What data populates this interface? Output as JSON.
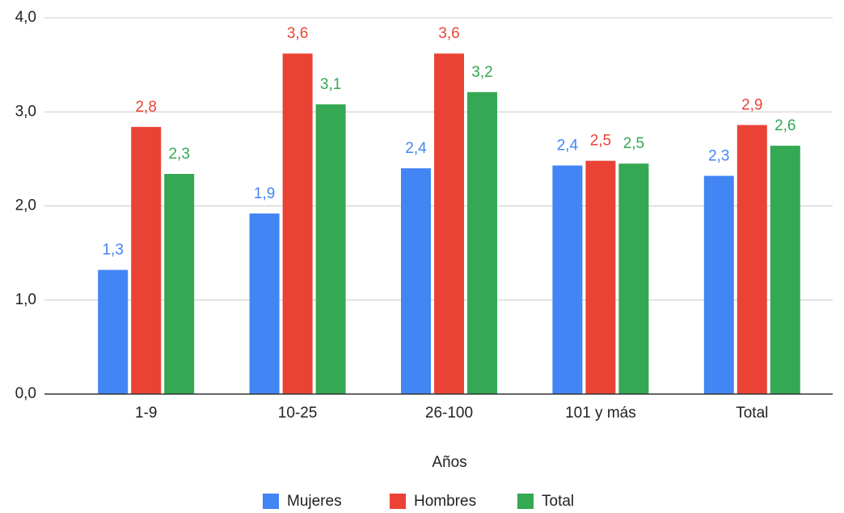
{
  "chart_data": {
    "type": "bar",
    "x_label": "Años",
    "categories": [
      "1-9",
      "10-25",
      "26-100",
      "101 y más",
      "Total"
    ],
    "series": [
      {
        "name": "Mujeres",
        "color": "#4285f4",
        "values": [
          1.32,
          1.92,
          2.4,
          2.43,
          2.32
        ],
        "value_labels": [
          "1,3",
          "1,9",
          "2,4",
          "2,4",
          "2,3"
        ]
      },
      {
        "name": "Hombres",
        "color": "#ea4335",
        "values": [
          2.84,
          3.62,
          3.62,
          2.48,
          2.86
        ],
        "value_labels": [
          "2,8",
          "3,6",
          "3,6",
          "2,5",
          "2,9"
        ]
      },
      {
        "name": "Total",
        "color": "#34a853",
        "values": [
          2.34,
          3.08,
          3.21,
          2.45,
          2.64
        ],
        "value_labels": [
          "2,3",
          "3,1",
          "3,2",
          "2,5",
          "2,6"
        ]
      }
    ],
    "ylim": [
      0,
      4
    ],
    "yticks": [
      {
        "value": 0,
        "label": "0,0"
      },
      {
        "value": 1,
        "label": "1,0"
      },
      {
        "value": 2,
        "label": "2,0"
      },
      {
        "value": 3,
        "label": "3,0"
      },
      {
        "value": 4,
        "label": "4,0"
      }
    ],
    "grid": true,
    "legend": "bottom"
  }
}
